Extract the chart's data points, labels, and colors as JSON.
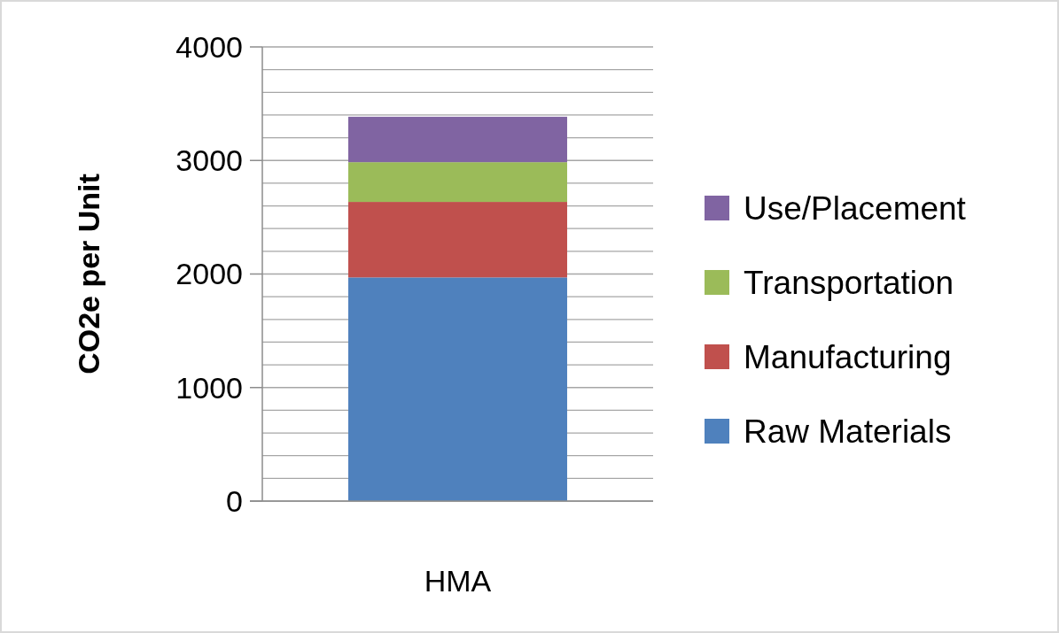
{
  "chart_data": {
    "type": "bar",
    "stacked": true,
    "ylabel": "CO2e per Unit",
    "categories": [
      "HMA"
    ],
    "series": [
      {
        "name": "Raw Materials",
        "color": "#4f81bd",
        "values": [
          1970
        ]
      },
      {
        "name": "Manufacturing",
        "color": "#c0504d",
        "values": [
          665
        ]
      },
      {
        "name": "Transportation",
        "color": "#9bbb59",
        "values": [
          350
        ]
      },
      {
        "name": "Use/Placement",
        "color": "#8064a2",
        "values": [
          400
        ]
      }
    ],
    "ylim": [
      0,
      4000
    ],
    "yticks": [
      0,
      {
        "value": 200,
        "label": null
      },
      {
        "value": 400,
        "label": null
      },
      {
        "value": 600,
        "label": null
      },
      {
        "value": 800,
        "label": null
      },
      1000,
      {
        "value": 1200,
        "label": null
      },
      {
        "value": 1400,
        "label": null
      },
      {
        "value": 1600,
        "label": null
      },
      {
        "value": 1800,
        "label": null
      },
      2000,
      {
        "value": 2200,
        "label": null
      },
      {
        "value": 2400,
        "label": null
      },
      {
        "value": 2600,
        "label": null
      },
      {
        "value": 2800,
        "label": null
      },
      3000,
      {
        "value": 3200,
        "label": null
      },
      {
        "value": 3400,
        "label": null
      },
      {
        "value": 3600,
        "label": null
      },
      {
        "value": 3800,
        "label": null
      },
      4000
    ],
    "grid": "y",
    "legend": "right"
  }
}
